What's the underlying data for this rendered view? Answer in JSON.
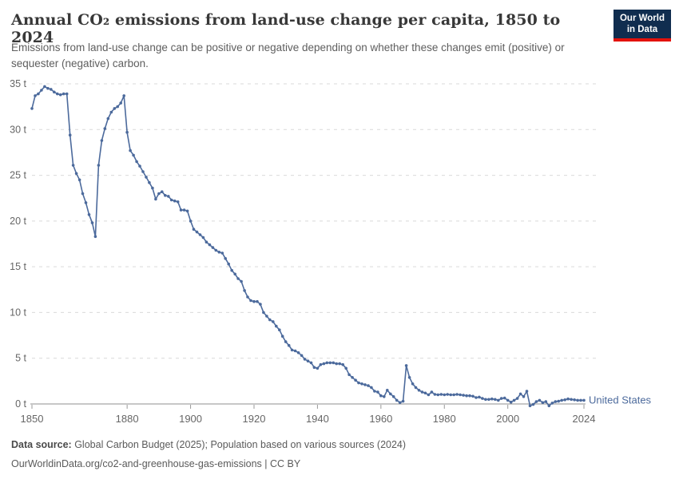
{
  "header": {
    "title": "Annual CO₂ emissions from land-use change per capita, 1850 to 2024",
    "subtitle": "Emissions from land-use change can be positive or negative depending on whether these changes emit (positive) or sequester (negative) carbon.",
    "logo": {
      "line1": "Our World",
      "line2": "in Data"
    }
  },
  "footer": {
    "source_label": "Data source:",
    "source_text": " Global Carbon Budget (2025); Population based on various sources (2024)",
    "license_text": "OurWorldinData.org/co2-and-greenhouse-gas-emissions | CC BY"
  },
  "colors": {
    "series_blue": "#4c6a9c",
    "grid": "#d9d9d9",
    "axis": "#8f8f8f",
    "tick": "#999999",
    "axis_text": "#666666",
    "logo_navy": "#102d4f",
    "logo_red": "#e3120b"
  },
  "chart_data": {
    "type": "line",
    "title": "Annual CO₂ emissions from land-use change per capita, 1850 to 2024",
    "xlabel": "",
    "ylabel": "",
    "grid": "horizontal-dashed",
    "legend_position": "end-of-line",
    "xlim": [
      1850,
      2024
    ],
    "ylim": [
      0,
      35
    ],
    "x_ticks": [
      1850,
      1880,
      1900,
      1920,
      1940,
      1960,
      1980,
      2000,
      2024
    ],
    "y_ticks": [
      0,
      5,
      10,
      15,
      20,
      25,
      30,
      35
    ],
    "y_tick_suffix": " t",
    "series": [
      {
        "name": "United States",
        "color": "#4c6a9c",
        "x": [
          1850,
          1851,
          1852,
          1853,
          1854,
          1855,
          1856,
          1857,
          1858,
          1859,
          1860,
          1861,
          1862,
          1863,
          1864,
          1865,
          1866,
          1867,
          1868,
          1869,
          1870,
          1871,
          1872,
          1873,
          1874,
          1875,
          1876,
          1877,
          1878,
          1879,
          1880,
          1881,
          1882,
          1883,
          1884,
          1885,
          1886,
          1887,
          1888,
          1889,
          1890,
          1891,
          1892,
          1893,
          1894,
          1895,
          1896,
          1897,
          1898,
          1899,
          1900,
          1901,
          1902,
          1903,
          1904,
          1905,
          1906,
          1907,
          1908,
          1909,
          1910,
          1911,
          1912,
          1913,
          1914,
          1915,
          1916,
          1917,
          1918,
          1919,
          1920,
          1921,
          1922,
          1923,
          1924,
          1925,
          1926,
          1927,
          1928,
          1929,
          1930,
          1931,
          1932,
          1933,
          1934,
          1935,
          1936,
          1937,
          1938,
          1939,
          1940,
          1941,
          1942,
          1943,
          1944,
          1945,
          1946,
          1947,
          1948,
          1949,
          1950,
          1951,
          1952,
          1953,
          1954,
          1955,
          1956,
          1957,
          1958,
          1959,
          1960,
          1961,
          1962,
          1963,
          1964,
          1965,
          1966,
          1967,
          1968,
          1969,
          1970,
          1971,
          1972,
          1973,
          1974,
          1975,
          1976,
          1977,
          1978,
          1979,
          1980,
          1981,
          1982,
          1983,
          1984,
          1985,
          1986,
          1987,
          1988,
          1989,
          1990,
          1991,
          1992,
          1993,
          1994,
          1995,
          1996,
          1997,
          1998,
          1999,
          2000,
          2001,
          2002,
          2003,
          2004,
          2005,
          2006,
          2007,
          2008,
          2009,
          2010,
          2011,
          2012,
          2013,
          2014,
          2015,
          2016,
          2017,
          2018,
          2019,
          2020,
          2021,
          2022,
          2023,
          2024
        ],
        "values": [
          32.3,
          33.7,
          33.9,
          34.3,
          34.7,
          34.5,
          34.4,
          34.1,
          33.9,
          33.8,
          33.9,
          33.9,
          29.4,
          26.1,
          25.2,
          24.5,
          23.0,
          22.0,
          20.7,
          19.8,
          18.3,
          26.1,
          28.8,
          30.1,
          31.2,
          31.9,
          32.3,
          32.5,
          32.9,
          33.7,
          29.7,
          27.7,
          27.2,
          26.5,
          26.0,
          25.4,
          24.8,
          24.2,
          23.6,
          22.4,
          23.0,
          23.2,
          22.8,
          22.7,
          22.3,
          22.2,
          22.1,
          21.2,
          21.2,
          21.1,
          20.0,
          19.1,
          18.8,
          18.5,
          18.2,
          17.7,
          17.4,
          17.1,
          16.8,
          16.6,
          16.5,
          15.9,
          15.3,
          14.6,
          14.2,
          13.7,
          13.4,
          12.4,
          11.7,
          11.3,
          11.2,
          11.2,
          10.9,
          10.0,
          9.6,
          9.2,
          9.0,
          8.5,
          8.1,
          7.4,
          6.8,
          6.4,
          5.9,
          5.8,
          5.6,
          5.3,
          4.9,
          4.7,
          4.5,
          4.0,
          3.9,
          4.3,
          4.4,
          4.5,
          4.5,
          4.5,
          4.4,
          4.4,
          4.3,
          3.9,
          3.2,
          2.9,
          2.6,
          2.3,
          2.2,
          2.1,
          2.0,
          1.8,
          1.4,
          1.3,
          0.9,
          0.8,
          1.5,
          1.1,
          0.8,
          0.4,
          0.15,
          0.3,
          4.2,
          2.9,
          2.2,
          1.8,
          1.5,
          1.3,
          1.2,
          1.0,
          1.3,
          1.05,
          1.0,
          1.05,
          1.0,
          1.05,
          1.0,
          1.0,
          1.05,
          1.0,
          0.95,
          0.9,
          0.9,
          0.85,
          0.7,
          0.75,
          0.6,
          0.5,
          0.5,
          0.55,
          0.5,
          0.4,
          0.6,
          0.65,
          0.4,
          0.2,
          0.4,
          0.6,
          1.1,
          0.8,
          1.4,
          -0.2,
          -0.05,
          0.25,
          0.4,
          0.15,
          0.25,
          -0.2,
          0.1,
          0.25,
          0.3,
          0.4,
          0.45,
          0.55,
          0.5,
          0.45,
          0.4,
          0.4,
          0.4
        ]
      }
    ]
  }
}
